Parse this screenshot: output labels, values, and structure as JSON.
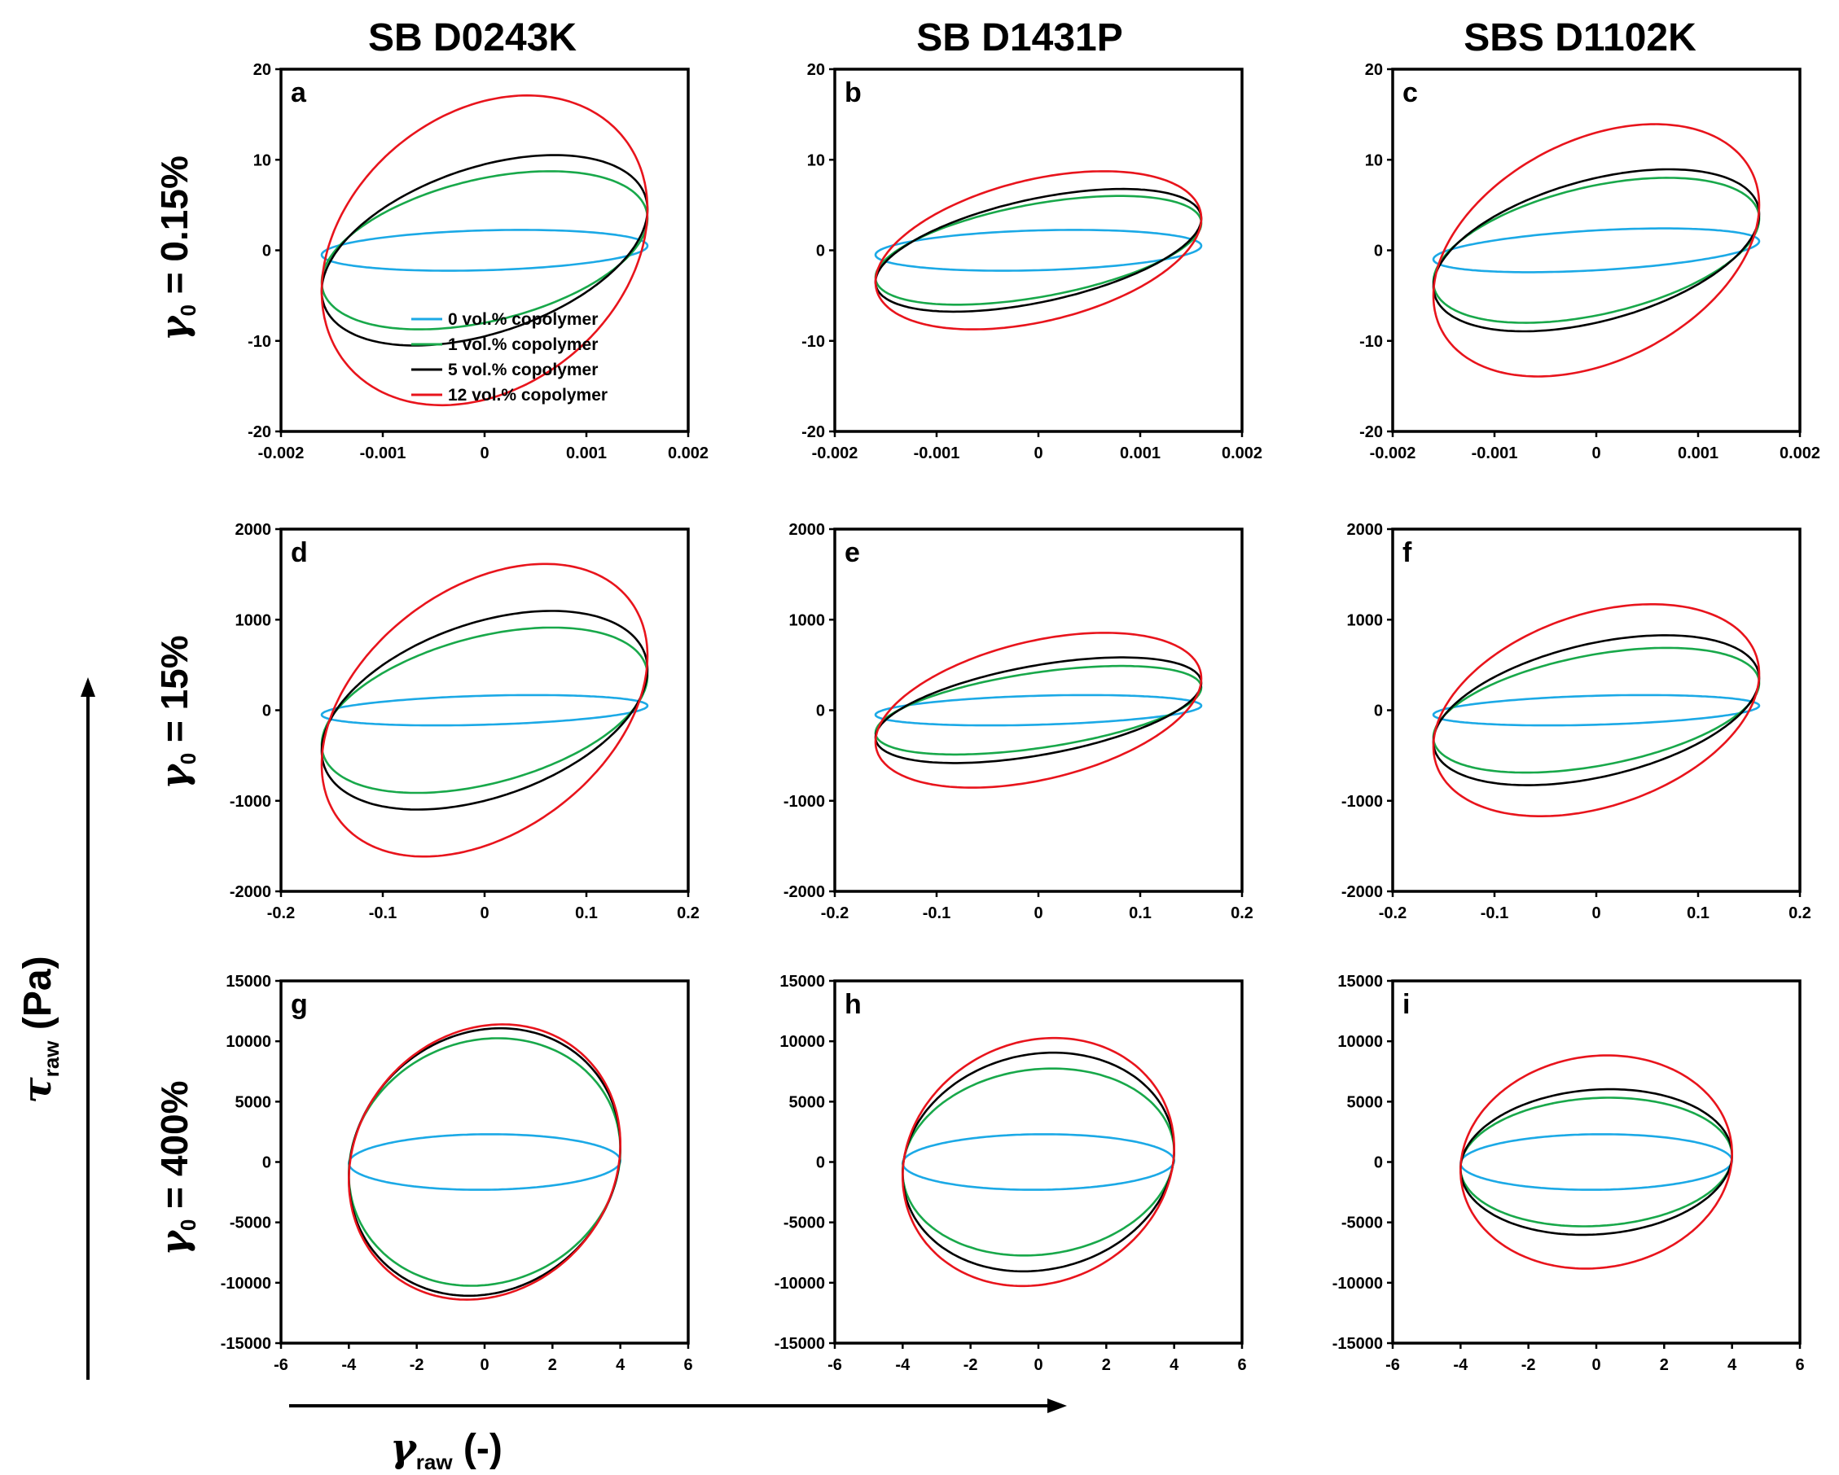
{
  "figure": {
    "column_titles": [
      "SB D0243K",
      "SB D1431P",
      "SBS D1102K"
    ],
    "row_labels": [
      {
        "symbol": "γ",
        "sub": "0",
        "text": " = 0.15%"
      },
      {
        "symbol": "γ",
        "sub": "0",
        "text": " = 15%"
      },
      {
        "symbol": "γ",
        "sub": "0",
        "text": " = 400%"
      }
    ],
    "y_axis_title": {
      "symbol": "τ",
      "sub": "raw",
      "unit": " (Pa)"
    },
    "x_axis_title": {
      "symbol": "γ",
      "sub": "raw",
      "unit": " (-)"
    }
  },
  "legend": {
    "entries": [
      {
        "label": "0 vol.% copolymer",
        "color": "#1ba9e6"
      },
      {
        "label": "1 vol.% copolymer",
        "color": "#18a84a"
      },
      {
        "label": "5 vol.% copolymer",
        "color": "#000000"
      },
      {
        "label": "12 vol.% copolymer",
        "color": "#e8141c"
      }
    ]
  },
  "chart_data": [
    {
      "type": "line",
      "panel": "a",
      "row": 0,
      "col": 0,
      "xlim": [
        -0.002,
        0.002
      ],
      "ylim": [
        -20,
        20
      ],
      "xticks": [
        "-0.002",
        "-0.001",
        "0",
        "0.001",
        "0.002"
      ],
      "yticks": [
        "20",
        "10",
        "0",
        "-10",
        "-20"
      ],
      "series": [
        {
          "name": "0 vol.% copolymer",
          "x_amplitude": 0.0016,
          "y_at_max_strain": 0.5,
          "y_at_zero_strain": 2.2
        },
        {
          "name": "1 vol.% copolymer",
          "x_amplitude": 0.0016,
          "y_at_max_strain": 3.5,
          "y_at_zero_strain": 8
        },
        {
          "name": "5 vol.% copolymer",
          "x_amplitude": 0.0016,
          "y_at_max_strain": 4.5,
          "y_at_zero_strain": 9.5
        },
        {
          "name": "12 vol.% copolymer",
          "x_amplitude": 0.0016,
          "y_at_max_strain": 4.5,
          "y_at_zero_strain": 16.5
        }
      ]
    },
    {
      "type": "line",
      "panel": "b",
      "row": 0,
      "col": 1,
      "xlim": [
        -0.002,
        0.002
      ],
      "ylim": [
        -20,
        20
      ],
      "xticks": [
        "-0.002",
        "-0.001",
        "0",
        "0.001",
        "0.002"
      ],
      "yticks": [
        "20",
        "10",
        "0",
        "-10",
        "-20"
      ],
      "series": [
        {
          "name": "0 vol.% copolymer",
          "x_amplitude": 0.0016,
          "y_at_max_strain": 0.5,
          "y_at_zero_strain": 2.2
        },
        {
          "name": "1 vol.% copolymer",
          "x_amplitude": 0.0016,
          "y_at_max_strain": 3.0,
          "y_at_zero_strain": 5.2
        },
        {
          "name": "5 vol.% copolymer",
          "x_amplitude": 0.0016,
          "y_at_max_strain": 3.5,
          "y_at_zero_strain": 5.8
        },
        {
          "name": "12 vol.% copolymer",
          "x_amplitude": 0.0016,
          "y_at_max_strain": 3.5,
          "y_at_zero_strain": 8.0
        }
      ]
    },
    {
      "type": "line",
      "panel": "c",
      "row": 0,
      "col": 2,
      "xlim": [
        -0.002,
        0.002
      ],
      "ylim": [
        -20,
        20
      ],
      "xticks": [
        "-0.002",
        "-0.001",
        "0",
        "0.001",
        "0.002"
      ],
      "yticks": [
        "20",
        "10",
        "0",
        "-10",
        "-20"
      ],
      "series": [
        {
          "name": "0 vol.% copolymer",
          "x_amplitude": 0.0016,
          "y_at_max_strain": 1.0,
          "y_at_zero_strain": 2.2
        },
        {
          "name": "1 vol.% copolymer",
          "x_amplitude": 0.0016,
          "y_at_max_strain": 3.5,
          "y_at_zero_strain": 7.2
        },
        {
          "name": "5 vol.% copolymer",
          "x_amplitude": 0.0016,
          "y_at_max_strain": 4.0,
          "y_at_zero_strain": 8.0
        },
        {
          "name": "12 vol.% copolymer",
          "x_amplitude": 0.0016,
          "y_at_max_strain": 5.0,
          "y_at_zero_strain": 13.0
        }
      ]
    },
    {
      "type": "line",
      "panel": "d",
      "row": 1,
      "col": 0,
      "xlim": [
        -0.2,
        0.2
      ],
      "ylim": [
        -2000,
        2000
      ],
      "xticks": [
        "-0.2",
        "-0.1",
        "0",
        "0.1",
        "0.2"
      ],
      "yticks": [
        "2000",
        "1000",
        "0",
        "-1000",
        "-2000"
      ],
      "series": [
        {
          "name": "0 vol.% copolymer",
          "x_amplitude": 0.16,
          "y_at_max_strain": 50,
          "y_at_zero_strain": 160
        },
        {
          "name": "1 vol.% copolymer",
          "x_amplitude": 0.16,
          "y_at_max_strain": 380,
          "y_at_zero_strain": 830
        },
        {
          "name": "5 vol.% copolymer",
          "x_amplitude": 0.16,
          "y_at_max_strain": 450,
          "y_at_zero_strain": 1000
        },
        {
          "name": "12 vol.% copolymer",
          "x_amplitude": 0.16,
          "y_at_max_strain": 600,
          "y_at_zero_strain": 1500
        }
      ]
    },
    {
      "type": "line",
      "panel": "e",
      "row": 1,
      "col": 1,
      "xlim": [
        -0.2,
        0.2
      ],
      "ylim": [
        -2000,
        2000
      ],
      "xticks": [
        "-0.2",
        "-0.1",
        "0",
        "0.1",
        "0.2"
      ],
      "yticks": [
        "2000",
        "1000",
        "0",
        "-1000",
        "-2000"
      ],
      "series": [
        {
          "name": "0 vol.% copolymer",
          "x_amplitude": 0.16,
          "y_at_max_strain": 50,
          "y_at_zero_strain": 160
        },
        {
          "name": "1 vol.% copolymer",
          "x_amplitude": 0.16,
          "y_at_max_strain": 250,
          "y_at_zero_strain": 420
        },
        {
          "name": "5 vol.% copolymer",
          "x_amplitude": 0.16,
          "y_at_max_strain": 300,
          "y_at_zero_strain": 500
        },
        {
          "name": "12 vol.% copolymer",
          "x_amplitude": 0.16,
          "y_at_max_strain": 350,
          "y_at_zero_strain": 780
        }
      ]
    },
    {
      "type": "line",
      "panel": "f",
      "row": 1,
      "col": 2,
      "xlim": [
        -0.2,
        0.2
      ],
      "ylim": [
        -2000,
        2000
      ],
      "xticks": [
        "-0.2",
        "-0.1",
        "0",
        "0.1",
        "0.2"
      ],
      "yticks": [
        "2000",
        "1000",
        "0",
        "-1000",
        "-2000"
      ],
      "series": [
        {
          "name": "0 vol.% copolymer",
          "x_amplitude": 0.16,
          "y_at_max_strain": 50,
          "y_at_zero_strain": 160
        },
        {
          "name": "1 vol.% copolymer",
          "x_amplitude": 0.16,
          "y_at_max_strain": 300,
          "y_at_zero_strain": 620
        },
        {
          "name": "5 vol.% copolymer",
          "x_amplitude": 0.16,
          "y_at_max_strain": 350,
          "y_at_zero_strain": 750
        },
        {
          "name": "12 vol.% copolymer",
          "x_amplitude": 0.16,
          "y_at_max_strain": 400,
          "y_at_zero_strain": 1100
        }
      ]
    },
    {
      "type": "line",
      "panel": "g",
      "row": 2,
      "col": 0,
      "xlim": [
        -6,
        6
      ],
      "ylim": [
        -15000,
        15000
      ],
      "xticks": [
        "-6",
        "-4",
        "-2",
        "0",
        "2",
        "4",
        "6"
      ],
      "yticks": [
        "15000",
        "10000",
        "5000",
        "0",
        "-5000",
        "-10000",
        "-15000"
      ],
      "series": [
        {
          "name": "0 vol.% copolymer",
          "x_amplitude": 4,
          "y_at_max_strain": 100,
          "y_at_zero_strain": 2300
        },
        {
          "name": "1 vol.% copolymer",
          "x_amplitude": 4,
          "y_at_max_strain": 1000,
          "y_at_zero_strain": 10200
        },
        {
          "name": "5 vol.% copolymer",
          "x_amplitude": 4,
          "y_at_max_strain": 1300,
          "y_at_zero_strain": 11000
        },
        {
          "name": "12 vol.% copolymer",
          "x_amplitude": 4,
          "y_at_max_strain": 1500,
          "y_at_zero_strain": 11300
        }
      ]
    },
    {
      "type": "line",
      "panel": "h",
      "row": 2,
      "col": 1,
      "xlim": [
        -6,
        6
      ],
      "ylim": [
        -15000,
        15000
      ],
      "xticks": [
        "-6",
        "-4",
        "-2",
        "0",
        "2",
        "4",
        "6"
      ],
      "yticks": [
        "15000",
        "10000",
        "5000",
        "0",
        "-5000",
        "-10000",
        "-15000"
      ],
      "series": [
        {
          "name": "0 vol.% copolymer",
          "x_amplitude": 4,
          "y_at_max_strain": 100,
          "y_at_zero_strain": 2300
        },
        {
          "name": "1 vol.% copolymer",
          "x_amplitude": 4,
          "y_at_max_strain": 800,
          "y_at_zero_strain": 7700
        },
        {
          "name": "5 vol.% copolymer",
          "x_amplitude": 4,
          "y_at_max_strain": 1000,
          "y_at_zero_strain": 9000
        },
        {
          "name": "12 vol.% copolymer",
          "x_amplitude": 4,
          "y_at_max_strain": 1200,
          "y_at_zero_strain": 10200
        }
      ]
    },
    {
      "type": "line",
      "panel": "i",
      "row": 2,
      "col": 2,
      "xlim": [
        -6,
        6
      ],
      "ylim": [
        -15000,
        15000
      ],
      "xticks": [
        "-6",
        "-4",
        "-2",
        "0",
        "2",
        "4",
        "6"
      ],
      "yticks": [
        "15000",
        "10000",
        "5000",
        "0",
        "-5000",
        "-10000",
        "-15000"
      ],
      "series": [
        {
          "name": "0 vol.% copolymer",
          "x_amplitude": 4,
          "y_at_max_strain": 100,
          "y_at_zero_strain": 2300
        },
        {
          "name": "1 vol.% copolymer",
          "x_amplitude": 4,
          "y_at_max_strain": 500,
          "y_at_zero_strain": 5300
        },
        {
          "name": "5 vol.% copolymer",
          "x_amplitude": 4,
          "y_at_max_strain": 600,
          "y_at_zero_strain": 6000
        },
        {
          "name": "12 vol.% copolymer",
          "x_amplitude": 4,
          "y_at_max_strain": 700,
          "y_at_zero_strain": 8800
        }
      ]
    }
  ]
}
